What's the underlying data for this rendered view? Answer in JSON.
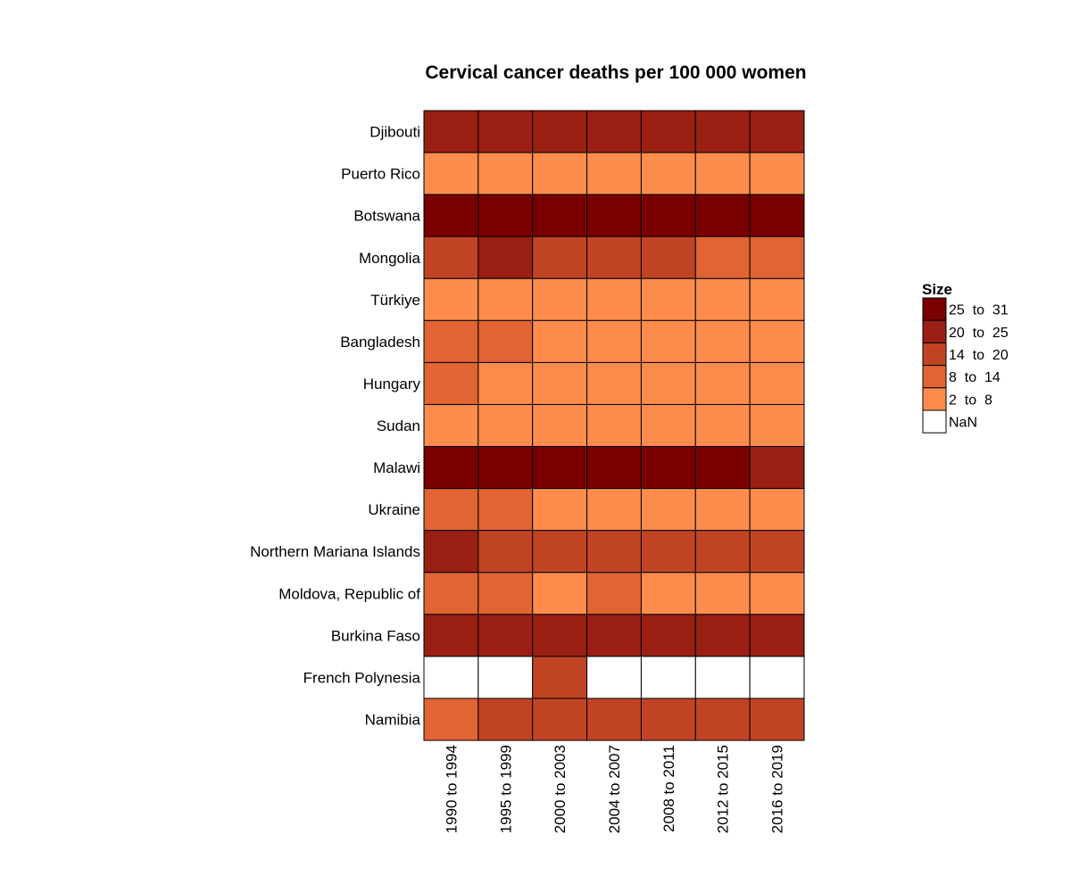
{
  "chart_data": {
    "type": "heatmap",
    "title": "Cervical cancer deaths per 100 000 women",
    "columns": [
      "1990 to 1994",
      "1995 to 1999",
      "2000 to 2003",
      "2004 to 2007",
      "2008 to 2011",
      "2012 to 2015",
      "2016 to 2019"
    ],
    "rows": [
      "Djibouti",
      "Puerto Rico",
      "Botswana",
      "Mongolia",
      "Türkiye",
      "Bangladesh",
      "Hungary",
      "Sudan",
      "Malawi",
      "Ukraine",
      "Northern Mariana Islands",
      "Moldova, Republic of",
      "Burkina Faso",
      "French Polynesia",
      "Namibia"
    ],
    "bins": [
      "25 to 31",
      "20 to 25",
      "14 to 20",
      "8 to 14",
      "2 to 8",
      "NaN"
    ],
    "cells": [
      [
        "20 to 25",
        "20 to 25",
        "20 to 25",
        "20 to 25",
        "20 to 25",
        "20 to 25",
        "20 to 25"
      ],
      [
        "2 to 8",
        "2 to 8",
        "2 to 8",
        "2 to 8",
        "2 to 8",
        "2 to 8",
        "2 to 8"
      ],
      [
        "25 to 31",
        "25 to 31",
        "25 to 31",
        "25 to 31",
        "25 to 31",
        "25 to 31",
        "25 to 31"
      ],
      [
        "14 to 20",
        "20 to 25",
        "14 to 20",
        "14 to 20",
        "14 to 20",
        "8 to 14",
        "8 to 14"
      ],
      [
        "2 to 8",
        "2 to 8",
        "2 to 8",
        "2 to 8",
        "2 to 8",
        "2 to 8",
        "2 to 8"
      ],
      [
        "8 to 14",
        "8 to 14",
        "2 to 8",
        "2 to 8",
        "2 to 8",
        "2 to 8",
        "2 to 8"
      ],
      [
        "8 to 14",
        "2 to 8",
        "2 to 8",
        "2 to 8",
        "2 to 8",
        "2 to 8",
        "2 to 8"
      ],
      [
        "2 to 8",
        "2 to 8",
        "2 to 8",
        "2 to 8",
        "2 to 8",
        "2 to 8",
        "2 to 8"
      ],
      [
        "25 to 31",
        "25 to 31",
        "25 to 31",
        "25 to 31",
        "25 to 31",
        "25 to 31",
        "20 to 25"
      ],
      [
        "8 to 14",
        "8 to 14",
        "2 to 8",
        "2 to 8",
        "2 to 8",
        "2 to 8",
        "2 to 8"
      ],
      [
        "20 to 25",
        "14 to 20",
        "14 to 20",
        "14 to 20",
        "14 to 20",
        "14 to 20",
        "14 to 20"
      ],
      [
        "8 to 14",
        "8 to 14",
        "2 to 8",
        "8 to 14",
        "2 to 8",
        "2 to 8",
        "2 to 8"
      ],
      [
        "20 to 25",
        "20 to 25",
        "20 to 25",
        "20 to 25",
        "20 to 25",
        "20 to 25",
        "20 to 25"
      ],
      [
        "NaN",
        "NaN",
        "14 to 20",
        "NaN",
        "NaN",
        "NaN",
        "NaN"
      ],
      [
        "8 to 14",
        "14 to 20",
        "14 to 20",
        "14 to 20",
        "14 to 20",
        "14 to 20",
        "14 to 20"
      ]
    ],
    "legend": {
      "title": "Size",
      "position": "right",
      "items": [
        {
          "label": "25  to  31",
          "color": "#7a0000"
        },
        {
          "label": "20  to  25",
          "color": "#992013"
        },
        {
          "label": "14  to  20",
          "color": "#c04424"
        },
        {
          "label": "8  to  14",
          "color": "#e06434"
        },
        {
          "label": "2  to  8",
          "color": "#fe8c4c"
        },
        {
          "label": "NaN",
          "color": "#ffffff"
        }
      ]
    },
    "colors": {
      "25 to 31": "#7a0000",
      "20 to 25": "#992013",
      "14 to 20": "#c04424",
      "8 to 14": "#e06434",
      "2 to 8": "#fe8c4c",
      "NaN": "#ffffff"
    }
  }
}
